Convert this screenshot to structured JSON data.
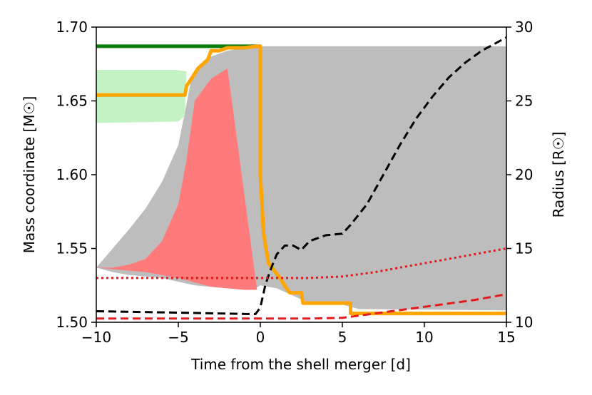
{
  "chart_data": {
    "type": "line",
    "xlabel": "Time from the shell merger [d]",
    "ylabel_left": "Mass coordinate [M☉]",
    "ylabel_right": "Radius [R☉]",
    "xlim": [
      -10,
      15
    ],
    "ylim_left": [
      1.5,
      1.7
    ],
    "ylim_right": [
      10,
      30
    ],
    "x_ticks": [
      "−10",
      "−5",
      "0",
      "5",
      "10",
      "15"
    ],
    "y_ticks_left": [
      "1.50",
      "1.55",
      "1.60",
      "1.65",
      "1.70"
    ],
    "y_ticks_right": [
      "10",
      "15",
      "20",
      "25",
      "30"
    ],
    "grid": false,
    "colors": {
      "gray_region": "#bdbdbd",
      "red_region": "#ff7b7b",
      "green_region": "#c5f2c5",
      "orange": "#ffa500",
      "dark_green": "#0a7d0a",
      "black": "#000000",
      "red": "#e41a1c"
    },
    "regions": [
      {
        "color": "gray_region",
        "upper": [
          [
            -10,
            1.537
          ],
          [
            -9,
            1.55
          ],
          [
            -8,
            1.563
          ],
          [
            -7,
            1.577
          ],
          [
            -6,
            1.595
          ],
          [
            -5,
            1.62
          ],
          [
            -4.5,
            1.648
          ],
          [
            -4.2,
            1.665
          ],
          [
            -3.5,
            1.675
          ],
          [
            -3,
            1.68
          ],
          [
            -2,
            1.684
          ],
          [
            -1,
            1.686
          ],
          [
            0,
            1.687
          ],
          [
            5,
            1.687
          ],
          [
            10,
            1.687
          ],
          [
            15,
            1.687
          ]
        ],
        "lower": [
          [
            -10,
            1.537
          ],
          [
            -9,
            1.534
          ],
          [
            -8,
            1.532
          ],
          [
            -6,
            1.53
          ],
          [
            -4,
            1.525
          ],
          [
            -2,
            1.523
          ],
          [
            -0.3,
            1.523
          ],
          [
            0,
            1.525
          ],
          [
            1,
            1.523
          ],
          [
            2,
            1.518
          ],
          [
            3,
            1.513
          ],
          [
            5,
            1.512
          ],
          [
            6,
            1.509
          ],
          [
            15,
            1.508
          ]
        ]
      },
      {
        "color": "red_region",
        "upper": [
          [
            -10,
            1.537
          ],
          [
            -9,
            1.537
          ],
          [
            -8,
            1.539
          ],
          [
            -7,
            1.543
          ],
          [
            -6,
            1.555
          ],
          [
            -5,
            1.58
          ],
          [
            -4.5,
            1.61
          ],
          [
            -4,
            1.65
          ],
          [
            -3,
            1.665
          ],
          [
            -2,
            1.672
          ]
        ],
        "lower": [
          [
            -10,
            1.537
          ],
          [
            -9,
            1.536
          ],
          [
            -8,
            1.535
          ],
          [
            -7,
            1.534
          ],
          [
            -6,
            1.532
          ],
          [
            -5,
            1.53
          ],
          [
            -4,
            1.527
          ],
          [
            -3,
            1.524
          ],
          [
            -2,
            1.523
          ],
          [
            -1,
            1.522
          ],
          [
            -0.2,
            1.522
          ]
        ]
      },
      {
        "color": "green_region",
        "upper": [
          [
            -10,
            1.671
          ],
          [
            -5.2,
            1.671
          ],
          [
            -4.5,
            1.67
          ]
        ],
        "lower": [
          [
            -10,
            1.635
          ],
          [
            -5,
            1.636
          ],
          [
            -4.6,
            1.64
          ]
        ]
      }
    ],
    "series": [
      {
        "name": "",
        "axis": "left",
        "color": "dark_green",
        "style": "solid",
        "width": 5,
        "points": [
          [
            -10,
            1.687
          ],
          [
            0,
            1.687
          ]
        ]
      },
      {
        "name": "",
        "axis": "left",
        "color": "orange",
        "style": "solid",
        "width": 5,
        "points": [
          [
            -10,
            1.654
          ],
          [
            -4.6,
            1.654
          ],
          [
            -4.5,
            1.66
          ],
          [
            -4.2,
            1.665
          ],
          [
            -3.8,
            1.672
          ],
          [
            -3.2,
            1.678
          ],
          [
            -3.0,
            1.684
          ],
          [
            -2.5,
            1.684
          ],
          [
            -2.0,
            1.686
          ],
          [
            -1,
            1.686
          ],
          [
            -0.2,
            1.687
          ],
          [
            0.0,
            1.687
          ],
          [
            0.0,
            1.6
          ],
          [
            0.2,
            1.56
          ],
          [
            0.5,
            1.54
          ],
          [
            1.2,
            1.53
          ],
          [
            1.6,
            1.523
          ],
          [
            1.8,
            1.52
          ],
          [
            2.5,
            1.52
          ],
          [
            2.6,
            1.513
          ],
          [
            5.5,
            1.513
          ],
          [
            5.5,
            1.506
          ],
          [
            15,
            1.506
          ]
        ]
      },
      {
        "name": "",
        "axis": "right",
        "color": "black",
        "style": "dashed",
        "width": 3,
        "points": [
          [
            -10,
            10.75
          ],
          [
            -5,
            10.65
          ],
          [
            -0.3,
            10.55
          ],
          [
            0.0,
            11.0
          ],
          [
            0.3,
            12.5
          ],
          [
            0.6,
            13.5
          ],
          [
            1.0,
            14.6
          ],
          [
            1.5,
            15.2
          ],
          [
            2.0,
            15.2
          ],
          [
            2.5,
            14.9
          ],
          [
            3.0,
            15.5
          ],
          [
            4.0,
            15.9
          ],
          [
            5.0,
            16.0
          ],
          [
            5.5,
            16.6
          ],
          [
            6.5,
            18.0
          ],
          [
            7.5,
            20.0
          ],
          [
            8.5,
            22.0
          ],
          [
            9.5,
            23.8
          ],
          [
            10.5,
            25.3
          ],
          [
            11.5,
            26.6
          ],
          [
            12.5,
            27.6
          ],
          [
            13.5,
            28.4
          ],
          [
            15,
            29.3
          ]
        ]
      },
      {
        "name": "",
        "axis": "right",
        "color": "red",
        "style": "dashed",
        "width": 3,
        "points": [
          [
            -10,
            10.25
          ],
          [
            -5,
            10.25
          ],
          [
            0,
            10.25
          ],
          [
            3,
            10.25
          ],
          [
            5,
            10.3
          ],
          [
            7,
            10.6
          ],
          [
            9,
            10.9
          ],
          [
            11,
            11.2
          ],
          [
            13,
            11.5
          ],
          [
            15,
            11.9
          ]
        ]
      },
      {
        "name": "",
        "axis": "right",
        "color": "red",
        "style": "dotted",
        "width": 3,
        "points": [
          [
            -10,
            13.0
          ],
          [
            -5,
            13.0
          ],
          [
            0,
            13.0
          ],
          [
            3,
            13.0
          ],
          [
            5,
            13.1
          ],
          [
            7,
            13.4
          ],
          [
            9,
            13.8
          ],
          [
            11,
            14.2
          ],
          [
            13,
            14.6
          ],
          [
            15,
            15.0
          ]
        ]
      }
    ]
  }
}
